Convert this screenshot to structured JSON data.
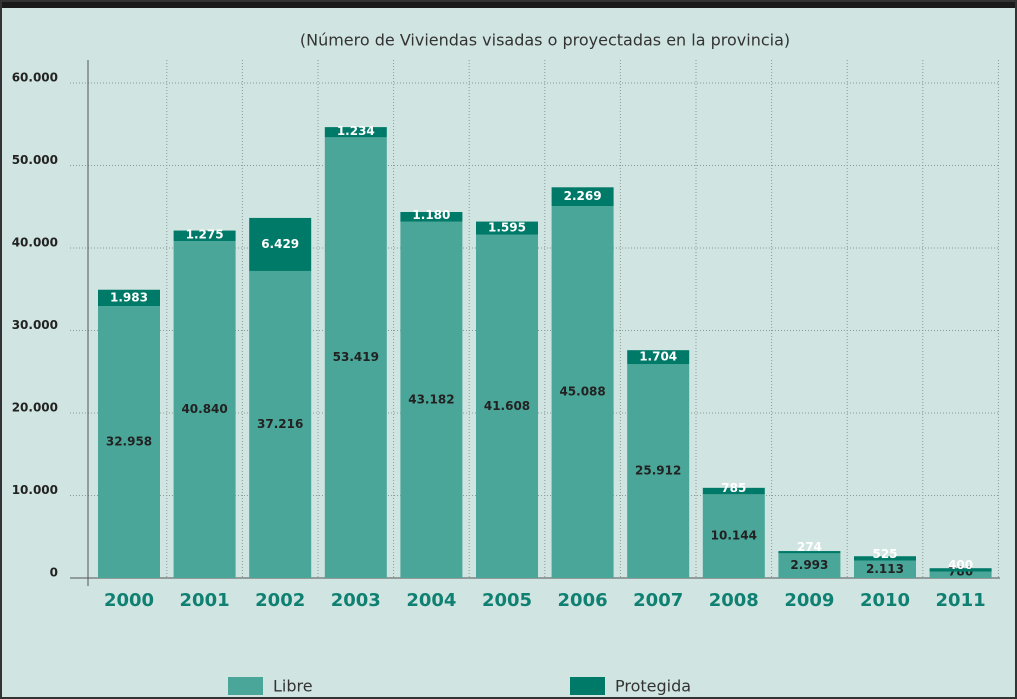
{
  "chart_data": {
    "type": "stacked_bar",
    "subtitle": "(Número de Viviendas visadas o proyectadas en la provincia)",
    "categories": [
      "2000",
      "2001",
      "2002",
      "2003",
      "2004",
      "2005",
      "2006",
      "2007",
      "2008",
      "2009",
      "2010",
      "2011"
    ],
    "series": [
      {
        "name": "Libre",
        "color": "#4aa699",
        "values": [
          32958,
          40840,
          37216,
          53419,
          43182,
          41608,
          45088,
          25912,
          10144,
          2993,
          2113,
          786
        ],
        "value_labels": [
          "32.958",
          "40.840",
          "37.216",
          "53.419",
          "43.182",
          "41.608",
          "45.088",
          "25.912",
          "10.144",
          "2.993",
          "2.113",
          "786"
        ]
      },
      {
        "name": "Protegida",
        "color": "#007a68",
        "values": [
          1983,
          1275,
          6429,
          1234,
          1180,
          1595,
          2269,
          1704,
          785,
          274,
          525,
          400
        ],
        "value_labels": [
          "1.983",
          "1.275",
          "6.429",
          "1.234",
          "1.180",
          "1.595",
          "2.269",
          "1.704",
          "785",
          "274",
          "525",
          "400"
        ]
      }
    ],
    "ylim": [
      0,
      60000
    ],
    "yticks": [
      0,
      {
        "value": 10000,
        "label": "10.000"
      },
      {
        "value": 20000,
        "label": "20.000"
      },
      {
        "value": 30000,
        "label": "30.000"
      },
      {
        "value": 40000,
        "label": "40.000"
      },
      {
        "value": 50000,
        "label": "50.000"
      },
      {
        "value": 60000,
        "label": "60.000"
      }
    ],
    "grid": true
  }
}
